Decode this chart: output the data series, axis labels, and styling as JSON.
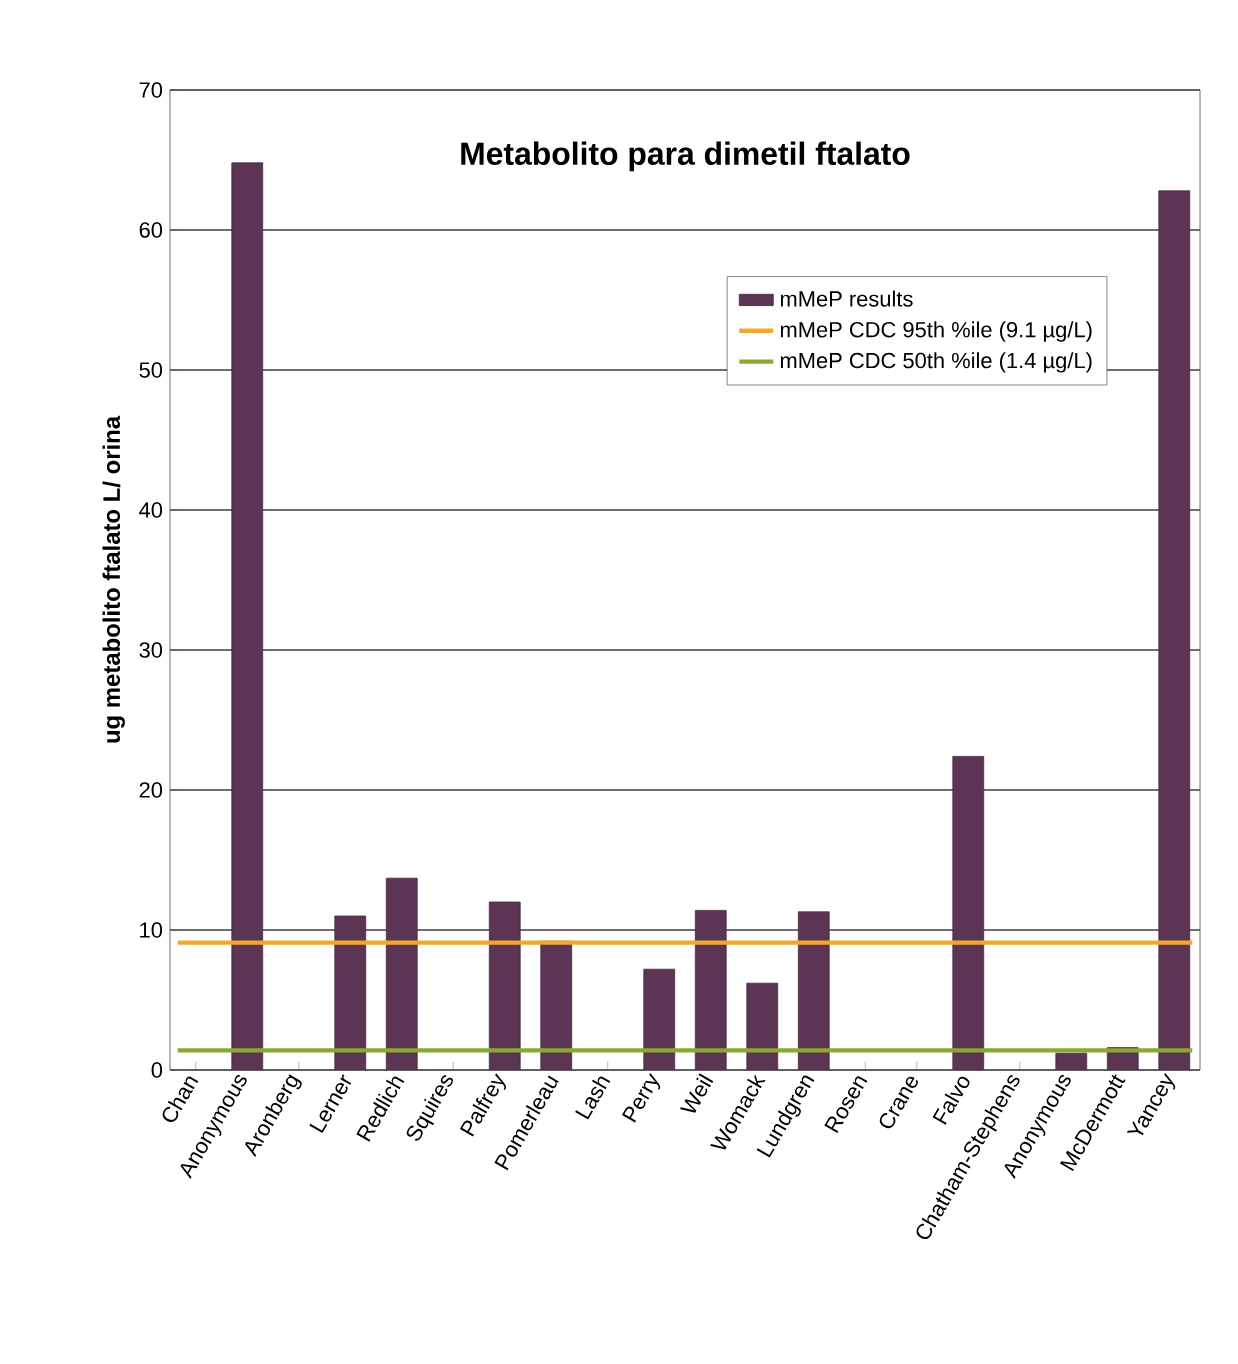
{
  "chart_data": {
    "type": "bar",
    "title": "Metabolito para dimetil ftalato",
    "ylabel": "ug metabolito ftalato L/ orina",
    "categories": [
      "Chan",
      "Anonymous",
      "Aronberg",
      "Lerner",
      "Redlich",
      "Squires",
      "Palfrey",
      "Pomerleau",
      "Lash",
      "Perry",
      "Weil",
      "Womack",
      "Lundgren",
      "Rosen",
      "Crane",
      "Falvo",
      "Chatham-Stephens",
      "Anonymous",
      "McDermott",
      "Yancey"
    ],
    "series": [
      {
        "name": "mMeP results",
        "color": "#5b3553",
        "values": [
          null,
          64.8,
          null,
          11,
          13.7,
          null,
          12,
          9.2,
          null,
          7.2,
          11.4,
          6.2,
          11.3,
          null,
          null,
          22.4,
          null,
          1.2,
          1.6,
          62.8
        ]
      }
    ],
    "ref_lines": [
      {
        "axis": "y",
        "value": 9.1,
        "label": "mMeP CDC 95th %ile (9.1 µg/L)",
        "color": "#f0a830"
      },
      {
        "axis": "y",
        "value": 1.4,
        "label": "mMeP CDC 50th %ile (1.4 µg/L)",
        "color": "#8aa832"
      }
    ],
    "ylim": [
      0,
      70
    ],
    "yticks": [
      0,
      10,
      20,
      30,
      40,
      50,
      60,
      70
    ],
    "grid": "y",
    "legend": "top right"
  }
}
